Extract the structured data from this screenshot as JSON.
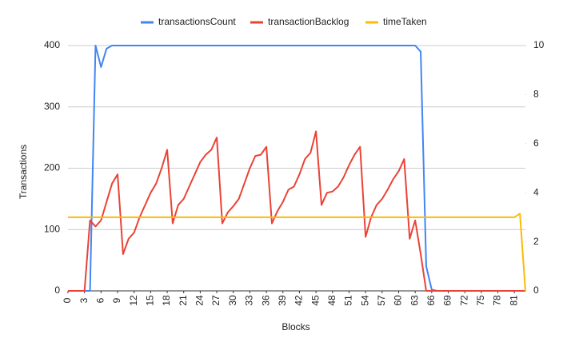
{
  "chart_data": {
    "type": "line",
    "x_label": "Blocks",
    "y_label": "Transactions",
    "x": [
      0,
      1,
      2,
      3,
      4,
      5,
      6,
      7,
      8,
      9,
      10,
      11,
      12,
      13,
      14,
      15,
      16,
      17,
      18,
      19,
      20,
      21,
      22,
      23,
      24,
      25,
      26,
      27,
      28,
      29,
      30,
      31,
      32,
      33,
      34,
      35,
      36,
      37,
      38,
      39,
      40,
      41,
      42,
      43,
      44,
      45,
      46,
      47,
      48,
      49,
      50,
      51,
      52,
      53,
      54,
      55,
      56,
      57,
      58,
      59,
      60,
      61,
      62,
      63,
      64,
      65,
      66,
      67,
      68,
      69,
      70,
      71,
      72,
      73,
      74,
      75,
      76,
      77,
      78,
      79,
      80,
      81,
      82,
      83
    ],
    "xlim": [
      0,
      83
    ],
    "xticks": [
      0,
      3,
      6,
      9,
      12,
      15,
      18,
      21,
      24,
      27,
      30,
      33,
      36,
      39,
      42,
      45,
      48,
      51,
      54,
      57,
      60,
      63,
      66,
      69,
      72,
      75,
      78,
      81
    ],
    "ylim": [
      0,
      400
    ],
    "yticks": [
      0,
      100,
      200,
      300,
      400
    ],
    "y2lim": [
      0,
      10
    ],
    "y2ticks": [
      0,
      2,
      4,
      6,
      8,
      10
    ],
    "grid": true,
    "legend": "top",
    "series": [
      {
        "name": "transactionsCount",
        "color": "#4285f4",
        "values": [
          0,
          0,
          0,
          0,
          0,
          400,
          365,
          395,
          400,
          400,
          400,
          400,
          400,
          400,
          400,
          400,
          400,
          400,
          400,
          400,
          400,
          400,
          400,
          400,
          400,
          400,
          400,
          400,
          400,
          400,
          400,
          400,
          400,
          400,
          400,
          400,
          400,
          400,
          400,
          400,
          400,
          400,
          400,
          400,
          400,
          400,
          400,
          400,
          400,
          400,
          400,
          400,
          400,
          400,
          400,
          400,
          400,
          400,
          400,
          400,
          400,
          400,
          400,
          400,
          390,
          40,
          2,
          0,
          0,
          0,
          0,
          0,
          0,
          0,
          0,
          0,
          0,
          0,
          0,
          0,
          0,
          0,
          0,
          0
        ]
      },
      {
        "name": "transactionBacklog",
        "color": "#ea4335",
        "values": [
          0,
          0,
          0,
          0,
          115,
          105,
          115,
          145,
          175,
          190,
          60,
          85,
          95,
          120,
          140,
          160,
          175,
          200,
          230,
          110,
          140,
          150,
          170,
          190,
          210,
          222,
          230,
          250,
          110,
          128,
          138,
          150,
          175,
          200,
          220,
          222,
          235,
          110,
          130,
          145,
          165,
          170,
          190,
          215,
          225,
          260,
          140,
          160,
          162,
          170,
          185,
          205,
          222,
          235,
          88,
          120,
          140,
          150,
          165,
          182,
          195,
          215,
          85,
          115,
          60,
          0,
          0,
          0,
          0,
          0,
          0,
          0,
          0,
          0,
          0,
          0,
          0,
          0,
          0,
          0,
          0,
          0,
          0,
          0
        ]
      },
      {
        "name": "timeTaken",
        "color": "#fbbc04",
        "axis": "y2",
        "values": [
          3,
          3,
          3,
          3,
          3,
          3,
          3,
          3,
          3,
          3,
          3,
          3,
          3,
          3,
          3,
          3,
          3,
          3,
          3,
          3,
          3,
          3,
          3,
          3,
          3,
          3,
          3,
          3,
          3,
          3,
          3,
          3,
          3,
          3,
          3,
          3,
          3,
          3,
          3,
          3,
          3,
          3,
          3,
          3,
          3,
          3,
          3,
          3,
          3,
          3,
          3,
          3,
          3,
          3,
          3,
          3,
          3,
          3,
          3,
          3,
          3,
          3,
          3,
          3,
          3,
          3,
          3,
          3,
          3,
          3,
          3,
          3,
          3,
          3,
          3,
          3,
          3,
          3,
          3,
          3,
          3,
          3,
          3.15,
          0
        ]
      }
    ]
  }
}
